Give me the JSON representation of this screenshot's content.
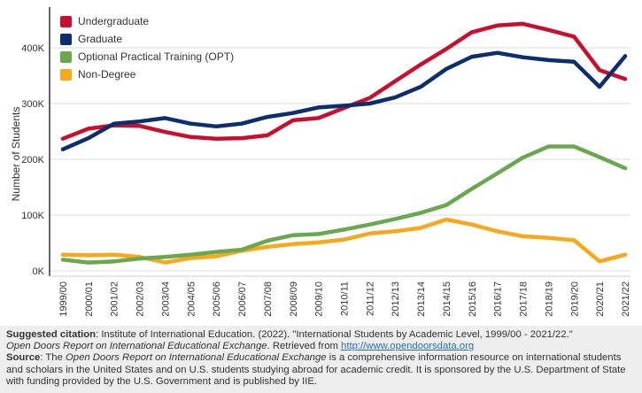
{
  "chart_data": {
    "type": "line",
    "title": "",
    "xlabel": "",
    "ylabel": "Number of Students",
    "ylim": [
      0,
      480000
    ],
    "yticks": [
      0,
      100000,
      200000,
      300000,
      400000
    ],
    "ytick_labels": [
      "0K",
      "100K",
      "200K",
      "300K",
      "400K"
    ],
    "categories": [
      "1999/00",
      "2000/01",
      "2001/02",
      "2002/03",
      "2003/04",
      "2004/05",
      "2005/06",
      "2006/07",
      "2007/08",
      "2008/09",
      "2009/10",
      "2010/11",
      "2011/12",
      "2012/13",
      "2013/14",
      "2014/15",
      "2015/16",
      "2016/17",
      "2017/18",
      "2018/19",
      "2019/20",
      "2020/21",
      "2021/22"
    ],
    "series": [
      {
        "name": "Undergraduate",
        "color": "#c8102e",
        "values": [
          237000,
          255000,
          261000,
          260000,
          249000,
          240000,
          237000,
          238000,
          243000,
          270000,
          274000,
          292000,
          310000,
          340000,
          370000,
          398000,
          428000,
          440000,
          443000,
          432000,
          420000,
          360000,
          344000
        ]
      },
      {
        "name": "Graduate",
        "color": "#0b2e6f",
        "values": [
          218000,
          238000,
          264000,
          268000,
          274000,
          264000,
          259000,
          264000,
          276000,
          283000,
          293000,
          296000,
          300000,
          311000,
          330000,
          362000,
          384000,
          391000,
          383000,
          378000,
          375000,
          330000,
          385000
        ]
      },
      {
        "name": "Optional Practical Training (OPT)",
        "color": "#6aa84f",
        "values": [
          20000,
          15000,
          17000,
          22000,
          25000,
          29000,
          34000,
          38000,
          54000,
          64000,
          66000,
          74000,
          83000,
          93000,
          104000,
          118000,
          147000,
          175000,
          203000,
          223000,
          223000,
          204000,
          184000
        ]
      },
      {
        "name": "Non-Degree",
        "color": "#f7a81b",
        "values": [
          29000,
          28000,
          29000,
          25000,
          15000,
          23000,
          26000,
          36000,
          43000,
          48000,
          51000,
          56000,
          67000,
          71000,
          77000,
          92000,
          83000,
          71000,
          62000,
          59000,
          55000,
          17000,
          29000
        ]
      }
    ],
    "grid": true,
    "legend": "top-left"
  },
  "legend": {
    "items": [
      {
        "label": "Undergraduate",
        "color": "#c8102e"
      },
      {
        "label": "Graduate",
        "color": "#0b2e6f"
      },
      {
        "label": "Optional Practical Training (OPT)",
        "color": "#6aa84f"
      },
      {
        "label": "Non-Degree",
        "color": "#f7a81b"
      }
    ]
  },
  "footer": {
    "citation_label": "Suggested citation",
    "citation_text": ": Institute of International Education. (2022). \"International Students by Academic Level, 1999/00 - 2021/22.\"",
    "citation_report": "Open Doors Report on International Educational Exchange",
    "citation_retrieved": ". Retrieved from ",
    "citation_link": "http://www.opendoorsdata.org",
    "source_label": "Source",
    "source_prefix": ": The ",
    "source_report": "Open Doors Report on International Educational Exchange",
    "source_text": " is a comprehensive information resource on international students and scholars in the United States and on U.S. students studying abroad for academic credit. It is sponsored by the U.S. Department of State with funding provided by the U.S. Government and is published by IIE."
  }
}
